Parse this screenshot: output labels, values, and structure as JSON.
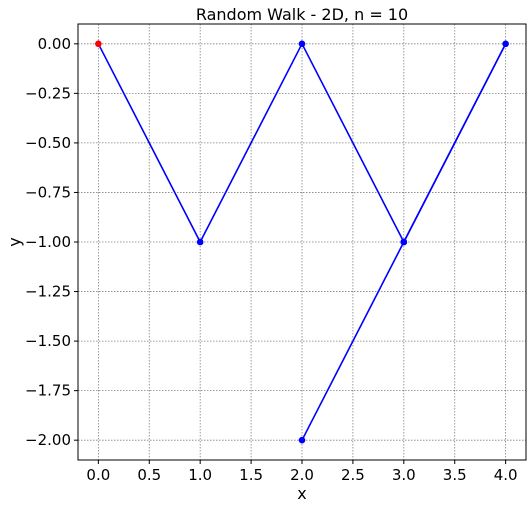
{
  "chart_data": {
    "type": "line",
    "title": "Random Walk - 2D, n = 10",
    "xlabel": "x",
    "ylabel": "y",
    "xlim": [
      -0.2,
      4.2
    ],
    "ylim": [
      -2.1,
      0.1
    ],
    "x_ticks": [
      0.0,
      0.5,
      1.0,
      1.5,
      2.0,
      2.5,
      3.0,
      3.5,
      4.0
    ],
    "x_tick_labels": [
      "0.0",
      "0.5",
      "1.0",
      "1.5",
      "2.0",
      "2.5",
      "3.0",
      "3.5",
      "4.0"
    ],
    "y_ticks": [
      0.0,
      -0.25,
      -0.5,
      -0.75,
      -1.0,
      -1.25,
      -1.5,
      -1.75,
      -2.0
    ],
    "y_tick_labels": [
      "0.00",
      "−0.25",
      "−0.50",
      "−0.75",
      "−1.00",
      "−1.25",
      "−1.50",
      "−1.75",
      "−2.00"
    ],
    "grid": true,
    "series": [
      {
        "x": [
          0,
          1,
          2,
          3,
          4,
          3,
          2
        ],
        "y": [
          0,
          -1,
          0,
          -1,
          0,
          -1,
          -2
        ],
        "color": "#0000ff",
        "start_color": "#ff0000"
      }
    ]
  }
}
